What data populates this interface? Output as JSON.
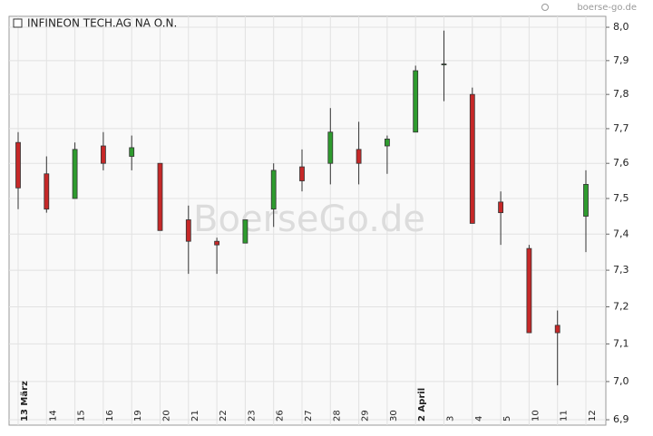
{
  "chart_data": {
    "type": "candlestick",
    "source": "boerse-go.de",
    "watermark": "BoerseGo.de",
    "categories": [
      "13 März",
      "14",
      "15",
      "16",
      "19",
      "20",
      "21",
      "22",
      "23",
      "26",
      "27",
      "28",
      "29",
      "30",
      "2 April",
      "3",
      "4",
      "5",
      "10",
      "11",
      "12"
    ],
    "series": [
      {
        "name": "INFINEON TECH.AG NA O.N.",
        "up_color": "#2e9b2e",
        "down_color": "#c62828",
        "open": [
          7.66,
          7.57,
          7.5,
          7.65,
          7.62,
          7.6,
          7.44,
          7.38,
          7.375,
          7.47,
          7.59,
          7.6,
          7.64,
          7.65,
          7.69,
          7.89,
          7.8,
          7.49,
          7.36,
          7.15,
          7.45
        ],
        "high": [
          7.69,
          7.62,
          7.66,
          7.69,
          7.68,
          7.6,
          7.48,
          7.39,
          7.44,
          7.6,
          7.64,
          7.76,
          7.72,
          7.68,
          7.885,
          7.99,
          7.82,
          7.52,
          7.37,
          7.19,
          7.58
        ],
        "low": [
          7.47,
          7.46,
          7.5,
          7.58,
          7.58,
          7.41,
          7.29,
          7.29,
          7.375,
          7.42,
          7.52,
          7.54,
          7.54,
          7.57,
          7.69,
          7.78,
          7.43,
          7.37,
          7.13,
          6.99,
          7.35
        ],
        "close": [
          7.53,
          7.47,
          7.64,
          7.6,
          7.645,
          7.41,
          7.38,
          7.37,
          7.44,
          7.58,
          7.55,
          7.69,
          7.6,
          7.67,
          7.87,
          7.89,
          7.43,
          7.46,
          7.13,
          7.13,
          7.54
        ]
      }
    ],
    "ylim": [
      6.886,
      8.033
    ],
    "log_scale": true,
    "grid": true,
    "yticks": [
      {
        "value": 6.9,
        "label": "6,9"
      },
      {
        "value": 7.0,
        "label": "7,0"
      },
      {
        "value": 7.1,
        "label": "7,1"
      },
      {
        "value": 7.2,
        "label": "7,2"
      },
      {
        "value": 7.3,
        "label": "7,3"
      },
      {
        "value": 7.4,
        "label": "7,4"
      },
      {
        "value": 7.5,
        "label": "7,5"
      },
      {
        "value": 7.6,
        "label": "7,6"
      },
      {
        "value": 7.7,
        "label": "7,7"
      },
      {
        "value": 7.8,
        "label": "7,8"
      },
      {
        "value": 7.9,
        "label": "7,9"
      },
      {
        "value": 8.0,
        "label": "8,0"
      }
    ]
  }
}
